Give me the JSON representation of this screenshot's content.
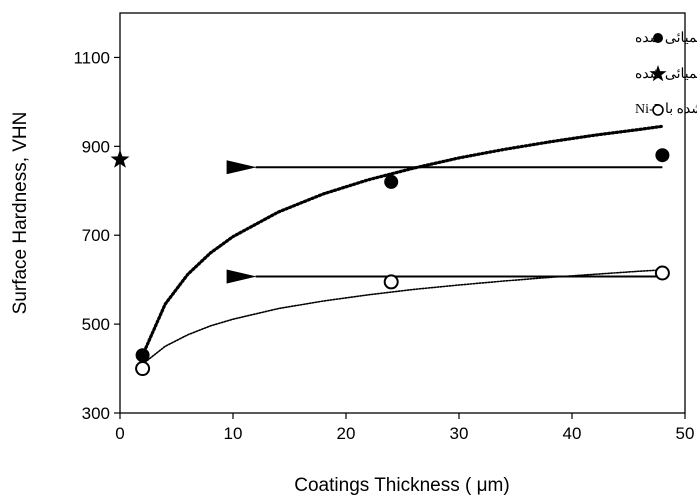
{
  "chart_data": {
    "type": "scatter",
    "xlabel": "Coatings Thickness (  μm)",
    "ylabel": "Surface Hardness, VHN",
    "xlim": [
      0,
      50
    ],
    "ylim": [
      300,
      1200
    ],
    "xticks": [
      0,
      10,
      20,
      30,
      40,
      50
    ],
    "yticks": [
      300,
      500,
      700,
      900,
      1100
    ],
    "grid": false,
    "legend_position": "top-right",
    "series": [
      {
        "name": "فولاد پوشش داده شده با Ni-P  و ترموشیمیائی شده",
        "marker": "filled-circle",
        "color": "#000000",
        "x": [
          2,
          24,
          48
        ],
        "y": [
          430,
          820,
          880
        ],
        "trend": "log",
        "trend_x": [
          2,
          4,
          6,
          8,
          10,
          14,
          18,
          22,
          26,
          30,
          34,
          38,
          42,
          46,
          48
        ],
        "trend_y": [
          430,
          545,
          612,
          660,
          697,
          752,
          793,
          825,
          851,
          874,
          893,
          910,
          925,
          938,
          945
        ]
      },
      {
        "name": "فولاد ترموشیمیائی شده",
        "marker": "star",
        "color": "#000000",
        "x": [
          0
        ],
        "y": [
          870
        ]
      },
      {
        "name": "فولاد پوشش داده شده با Ni-P",
        "marker": "open-circle",
        "color": "#000000",
        "x": [
          2,
          24,
          48
        ],
        "y": [
          400,
          595,
          615
        ],
        "trend": "log",
        "trend_x": [
          2,
          4,
          6,
          8,
          10,
          14,
          18,
          22,
          26,
          30,
          34,
          38,
          42,
          46,
          48
        ],
        "trend_y": [
          410,
          450,
          476,
          496,
          511,
          535,
          552,
          566,
          578,
          588,
          597,
          605,
          612,
          619,
          622
        ]
      }
    ],
    "annotations": [
      {
        "type": "arrow",
        "from": [
          48,
          853
        ],
        "to": [
          12,
          853
        ]
      },
      {
        "type": "arrow",
        "from": [
          48,
          607
        ],
        "to": [
          12,
          607
        ]
      }
    ]
  }
}
